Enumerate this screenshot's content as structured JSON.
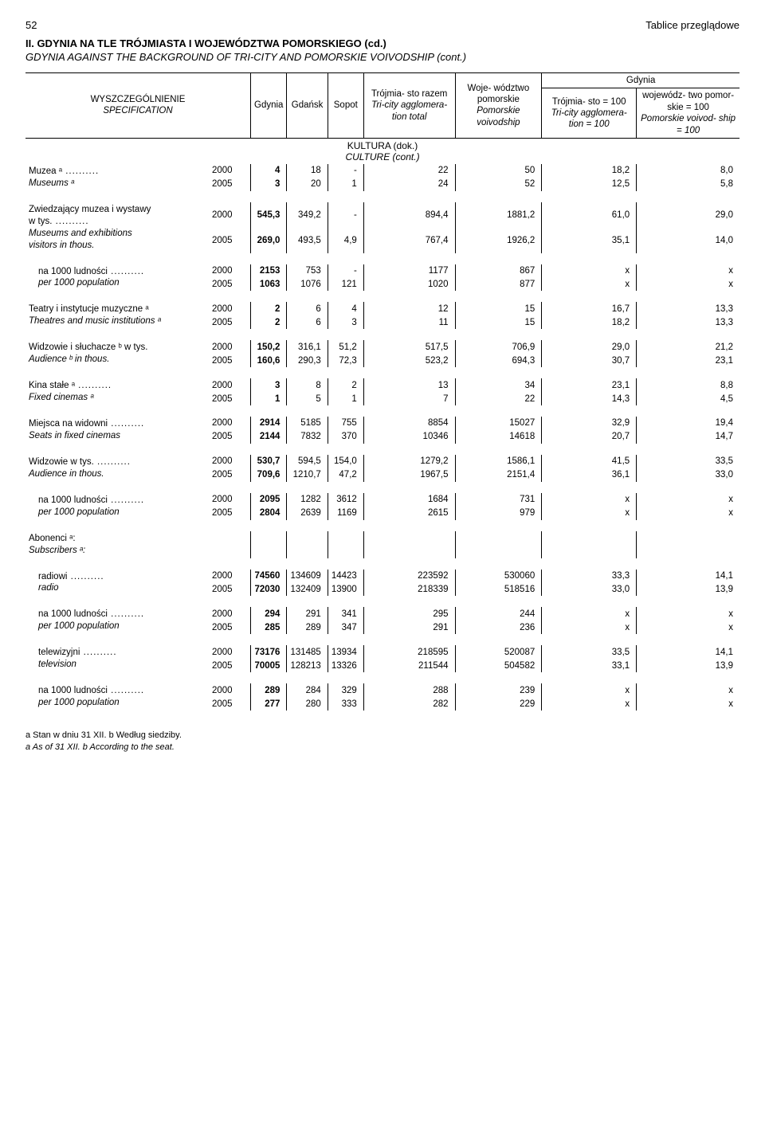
{
  "header": {
    "page_number": "52",
    "chapter": "Tablice przeglądowe"
  },
  "title": {
    "main_bold": "II. GDYNIA NA TLE TRÓJMIASTA I WOJEWÓDZTWA POMORSKIEGO (cd.)",
    "sub_it": "GDYNIA AGAINST THE BACKGROUND OF TRI-CITY AND POMORSKIE VOIVODSHIP (cont.)"
  },
  "columns": {
    "spec": {
      "pl": "WYSZCZEGÓLNIENIE",
      "en": "SPECIFICATION"
    },
    "gdynia": "Gdynia",
    "gdansk": "Gdańsk",
    "sopot": "Sopot",
    "tri_total": {
      "pl": "Trójmia-\nsto razem",
      "en": "Tri-city\nagglomera-\ntion total"
    },
    "voivod": {
      "pl": "Woje-\nwództwo\npomorskie",
      "en": "Pomorskie\nvoivodship"
    },
    "gdynia_group": "Gdynia",
    "tri100": {
      "pl": "Trójmia-\nsto = 100",
      "en": "Tri-city\nagglomera-\ntion = 100"
    },
    "voiv100": {
      "pl": "wojewódz-\ntwo pomor-\nskie = 100",
      "en": "Pomorskie\nvoivod-\nship = 100"
    }
  },
  "section_header": {
    "pl": "KULTURA (dok.)",
    "en": "CULTURE (cont.)"
  },
  "rows": [
    {
      "label_pl": "Muzea ᵃ",
      "label_en": "Museums ᵃ",
      "dots": true,
      "y": [
        "2000",
        "2005"
      ],
      "v": [
        [
          "4",
          "18",
          "-",
          "22",
          "50",
          "18,2",
          "8,0"
        ],
        [
          "3",
          "20",
          "1",
          "24",
          "52",
          "12,5",
          "5,8"
        ]
      ]
    },
    {
      "label_pl": "Zwiedzający muzea i wystawy\n  w tys.",
      "label_en": "Museums and exhibitions\nvisitors in thous.",
      "dots": true,
      "y": [
        "2000",
        "2005"
      ],
      "v": [
        [
          "545,3",
          "349,2",
          "-",
          "894,4",
          "1881,2",
          "61,0",
          "29,0"
        ],
        [
          "269,0",
          "493,5",
          "4,9",
          "767,4",
          "1926,2",
          "35,1",
          "14,0"
        ]
      ]
    },
    {
      "label_pl": "  na 1000 ludności",
      "label_en": "  per 1000 population",
      "dots": true,
      "indent": true,
      "y": [
        "2000",
        "2005"
      ],
      "v": [
        [
          "2153",
          "753",
          "-",
          "1177",
          "867",
          "x",
          "x"
        ],
        [
          "1063",
          "1076",
          "121",
          "1020",
          "877",
          "x",
          "x"
        ]
      ]
    },
    {
      "label_pl": "Teatry i instytucje muzyczne ᵃ",
      "label_en": "Theatres and music institutions ᵃ",
      "y": [
        "2000",
        "2005"
      ],
      "v": [
        [
          "2",
          "6",
          "4",
          "12",
          "15",
          "16,7",
          "13,3"
        ],
        [
          "2",
          "6",
          "3",
          "11",
          "15",
          "18,2",
          "13,3"
        ]
      ]
    },
    {
      "label_pl": "Widzowie i słuchacze ᵇ w tys.",
      "label_en": "Audience ᵇ in thous.",
      "y": [
        "2000",
        "2005"
      ],
      "v": [
        [
          "150,2",
          "316,1",
          "51,2",
          "517,5",
          "706,9",
          "29,0",
          "21,2"
        ],
        [
          "160,6",
          "290,3",
          "72,3",
          "523,2",
          "694,3",
          "30,7",
          "23,1"
        ]
      ]
    },
    {
      "label_pl": "Kina stałe ᵃ",
      "label_en": "Fixed cinemas ᵃ",
      "dots": true,
      "y": [
        "2000",
        "2005"
      ],
      "v": [
        [
          "3",
          "8",
          "2",
          "13",
          "34",
          "23,1",
          "8,8"
        ],
        [
          "1",
          "5",
          "1",
          "7",
          "22",
          "14,3",
          "4,5"
        ]
      ]
    },
    {
      "label_pl": "Miejsca na widowni",
      "label_en": "Seats in fixed cinemas",
      "dots": true,
      "y": [
        "2000",
        "2005"
      ],
      "v": [
        [
          "2914",
          "5185",
          "755",
          "8854",
          "15027",
          "32,9",
          "19,4"
        ],
        [
          "2144",
          "7832",
          "370",
          "10346",
          "14618",
          "20,7",
          "14,7"
        ]
      ]
    },
    {
      "label_pl": "Widzowie w tys.",
      "label_en": "Audience in thous.",
      "dots": true,
      "y": [
        "2000",
        "2005"
      ],
      "v": [
        [
          "530,7",
          "594,5",
          "154,0",
          "1279,2",
          "1586,1",
          "41,5",
          "33,5"
        ],
        [
          "709,6",
          "1210,7",
          "47,2",
          "1967,5",
          "2151,4",
          "36,1",
          "33,0"
        ]
      ]
    },
    {
      "label_pl": "  na 1000 ludności",
      "label_en": "  per 1000 population",
      "dots": true,
      "indent": true,
      "y": [
        "2000",
        "2005"
      ],
      "v": [
        [
          "2095",
          "1282",
          "3612",
          "1684",
          "731",
          "x",
          "x"
        ],
        [
          "2804",
          "2639",
          "1169",
          "2615",
          "979",
          "x",
          "x"
        ]
      ]
    },
    {
      "label_pl": "Abonenci ᵃ:",
      "label_en": "Subscribers ᵃ:",
      "heading_only": true
    },
    {
      "label_pl": "  radiowi",
      "label_en": "  radio",
      "dots": true,
      "indent": true,
      "y": [
        "2000",
        "2005"
      ],
      "v": [
        [
          "74560",
          "134609",
          "14423",
          "223592",
          "530060",
          "33,3",
          "14,1"
        ],
        [
          "72030",
          "132409",
          "13900",
          "218339",
          "518516",
          "33,0",
          "13,9"
        ]
      ]
    },
    {
      "label_pl": "    na 1000 ludności",
      "label_en": "    per 1000 population",
      "dots": true,
      "indent": true,
      "y": [
        "2000",
        "2005"
      ],
      "v": [
        [
          "294",
          "291",
          "341",
          "295",
          "244",
          "x",
          "x"
        ],
        [
          "285",
          "289",
          "347",
          "291",
          "236",
          "x",
          "x"
        ]
      ]
    },
    {
      "label_pl": "  telewizyjni",
      "label_en": "  television",
      "dots": true,
      "indent": true,
      "y": [
        "2000",
        "2005"
      ],
      "v": [
        [
          "73176",
          "131485",
          "13934",
          "218595",
          "520087",
          "33,5",
          "14,1"
        ],
        [
          "70005",
          "128213",
          "13326",
          "211544",
          "504582",
          "33,1",
          "13,9"
        ]
      ]
    },
    {
      "label_pl": "    na 1000 ludności",
      "label_en": "    per 1000 population",
      "dots": true,
      "indent": true,
      "y": [
        "2000",
        "2005"
      ],
      "v": [
        [
          "289",
          "284",
          "329",
          "288",
          "239",
          "x",
          "x"
        ],
        [
          "277",
          "280",
          "333",
          "282",
          "229",
          "x",
          "x"
        ]
      ]
    }
  ],
  "footnotes": {
    "pl": "a Stan w dniu 31 XII.   b Według siedziby.",
    "en": "a As of 31 XII.   b According to the seat."
  }
}
